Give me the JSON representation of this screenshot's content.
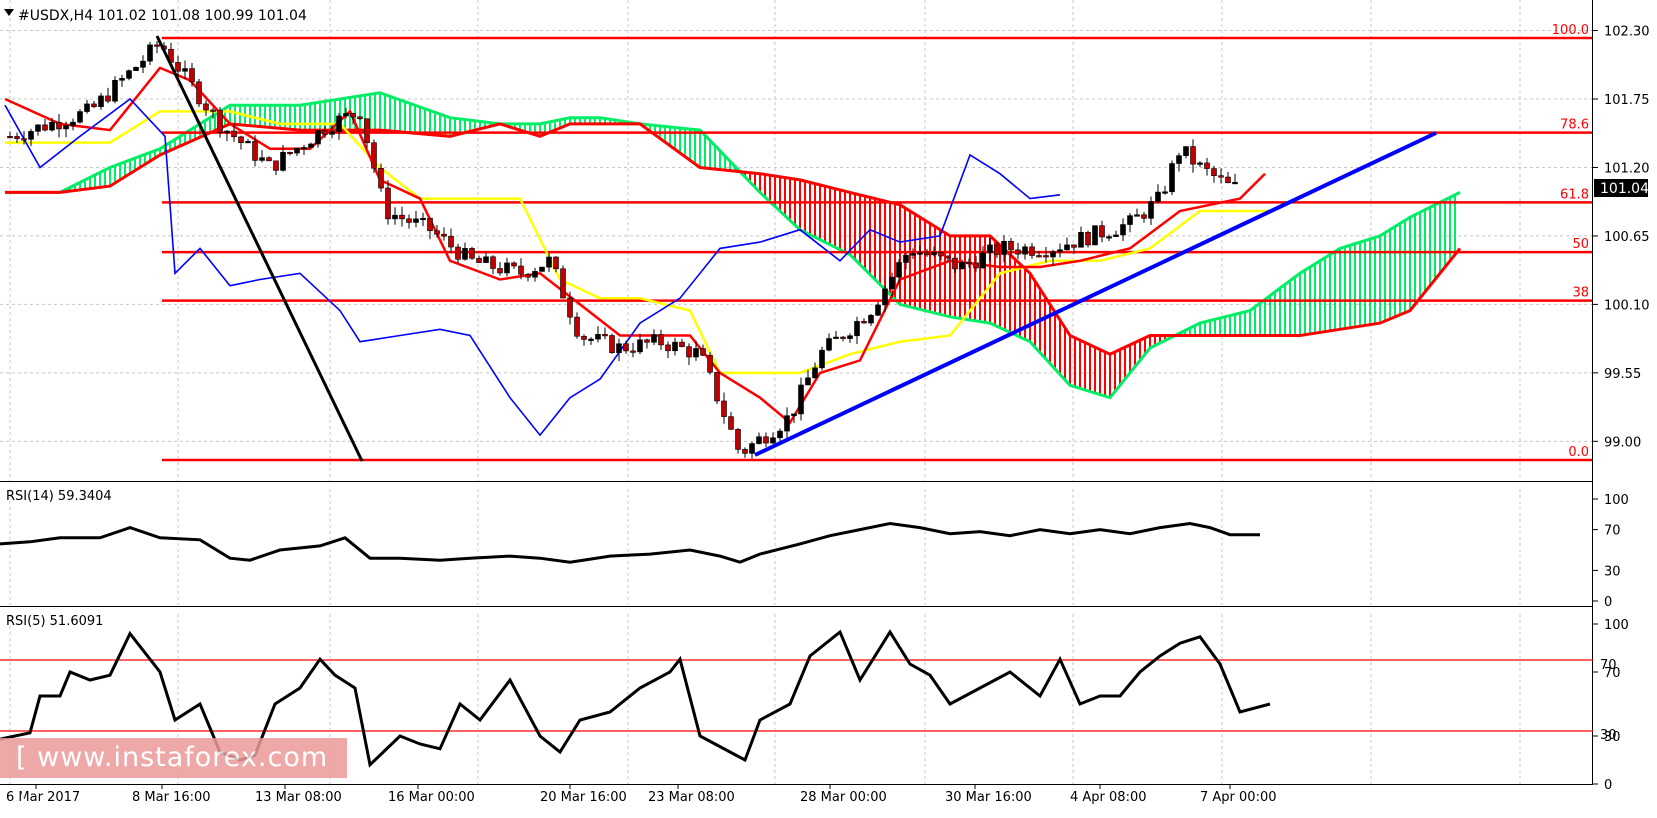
{
  "header": {
    "symbol_line": "#USDX,H4  101.02 101.08 100.99 101.04"
  },
  "main_chart": {
    "price_axis_ticks": [
      "102.30",
      "101.75",
      "101.20",
      "100.65",
      "100.10",
      "99.55",
      "99.00"
    ],
    "price_axis_values": [
      102.3,
      101.75,
      101.2,
      100.65,
      100.1,
      99.55,
      99.0
    ],
    "current_price_label": "101.04",
    "current_price": 101.04,
    "fib_levels": [
      {
        "label": "100.0",
        "price": 102.24
      },
      {
        "label": "78.6",
        "price": 101.48
      },
      {
        "label": "61.8",
        "price": 100.92
      },
      {
        "label": "50",
        "price": 100.52
      },
      {
        "label": "38",
        "price": 100.13
      },
      {
        "label": "0.0",
        "price": 98.85
      }
    ],
    "colors": {
      "fib": "#ff0000",
      "bull_candle": "#000000",
      "bear_candle": "#c00000",
      "tenkan": "#ff0000",
      "kijun": "#ffff00",
      "chikou": "#0000ff",
      "senkou_bull": "#00ee66",
      "senkou_bear": "#ff0000",
      "trendline": "#0000ff"
    }
  },
  "rsi14": {
    "label": "RSI(14) 59.3404",
    "axis_ticks": [
      "100",
      "70",
      "30",
      "0"
    ]
  },
  "rsi5": {
    "label": "RSI(5) 51.6091",
    "axis_ticks": [
      "100",
      "70",
      "30",
      "0"
    ],
    "level_labels": [
      "70",
      "30"
    ]
  },
  "time_axis": {
    "labels": [
      "6 Mar 2017",
      "8 Mar 16:00",
      "13 Mar 08:00",
      "16 Mar 00:00",
      "20 Mar 16:00",
      "23 Mar 08:00",
      "28 Mar 00:00",
      "30 Mar 16:00",
      "4 Apr 08:00",
      "7 Apr 00:00"
    ]
  },
  "watermark": {
    "text": "[ www.instaforex.com ]"
  },
  "chart_data": {
    "type": "line",
    "title": "#USDX,H4  101.02 101.08 100.99 101.04",
    "x": [
      "6 Mar 2017",
      "8 Mar 16:00",
      "13 Mar 08:00",
      "16 Mar 00:00",
      "20 Mar 16:00",
      "23 Mar 08:00",
      "28 Mar 00:00",
      "30 Mar 16:00",
      "4 Apr 08:00",
      "7 Apr 00:00"
    ],
    "series": [
      {
        "name": "",
        "values": [
          101.65,
          102.2,
          101.1,
          100.55,
          100.2,
          99.7,
          99.3,
          100.55,
          100.6,
          101.2
        ]
      }
    ],
    "ylim": [
      98.7,
      102.45
    ],
    "fib_retracement": {
      "100.0": 102.24,
      "78.6": 101.48,
      "61.8": 100.92,
      "50": 100.52,
      "38": 100.13,
      "0.0": 98.85
    },
    "rsi14_last": 59.3404,
    "rsi5_last": 51.6091,
    "last_ohlc": {
      "open": 101.02,
      "high": 101.08,
      "low": 100.99,
      "close": 101.04
    }
  }
}
